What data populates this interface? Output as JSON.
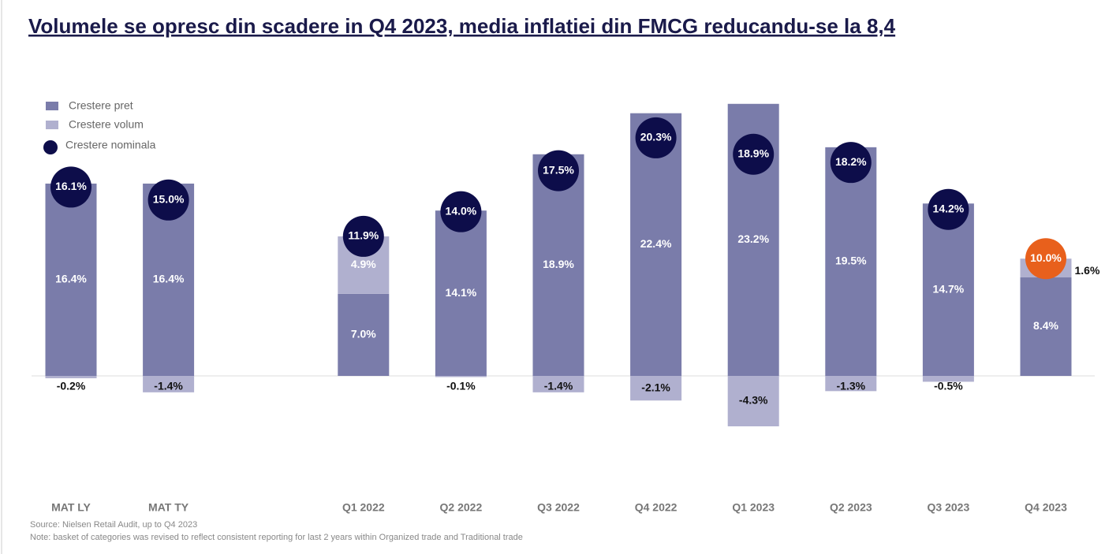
{
  "chart_data": {
    "type": "stacked-bar-with-markers",
    "title": "Volumele se opresc din scadere in Q4 2023, media inflatiei din FMCG reducandu-se la 8,4",
    "categories": [
      "MAT LY",
      "MAT TY",
      null,
      "Q1 2022",
      "Q2 2022",
      "Q3 2022",
      "Q4 2022",
      "Q1 2023",
      "Q2 2023",
      "Q3 2023",
      "Q4 2023"
    ],
    "series": [
      {
        "name": "Crestere pret",
        "color": "#7a7caa",
        "values": [
          16.4,
          16.4,
          null,
          7.0,
          14.1,
          18.9,
          22.4,
          23.2,
          19.5,
          14.7,
          8.4
        ],
        "value_labels": [
          "16.4%",
          "16.4%",
          null,
          "7.0%",
          "14.1%",
          "18.9%",
          "22.4%",
          "23.2%",
          "19.5%",
          "14.7%",
          "8.4%"
        ]
      },
      {
        "name": "Crestere volum",
        "color": "#b0b0cf",
        "values": [
          -0.2,
          -1.4,
          null,
          4.9,
          -0.1,
          -1.4,
          -2.1,
          -4.3,
          -1.3,
          -0.5,
          1.6
        ],
        "value_labels": [
          "-0.2%",
          "-1.4%",
          null,
          "4.9%",
          "-0.1%",
          "-1.4%",
          "-2.1%",
          "-4.3%",
          "-1.3%",
          "-0.5%",
          "1.6%"
        ]
      },
      {
        "name": "Crestere nominala",
        "color": "#0d0d4a",
        "values": [
          16.1,
          15.0,
          null,
          11.9,
          14.0,
          17.5,
          20.3,
          18.9,
          18.2,
          14.2,
          10.0
        ],
        "value_labels": [
          "16.1%",
          "15.0%",
          null,
          "11.9%",
          "14.0%",
          "17.5%",
          "20.3%",
          "18.9%",
          "18.2%",
          "14.2%",
          "10.0%"
        ],
        "colors": [
          "#0d0d4a",
          "#0d0d4a",
          null,
          "#0d0d4a",
          "#0d0d4a",
          "#0d0d4a",
          "#0d0d4a",
          "#0d0d4a",
          "#0d0d4a",
          "#0d0d4a",
          "#e8601c"
        ]
      }
    ],
    "source": "Source: Nielsen Retail Audit, up to Q4 2023",
    "note": "Note: basket of categories was revised to reflect consistent reporting for last 2 years within Organized trade and Traditional trade"
  }
}
